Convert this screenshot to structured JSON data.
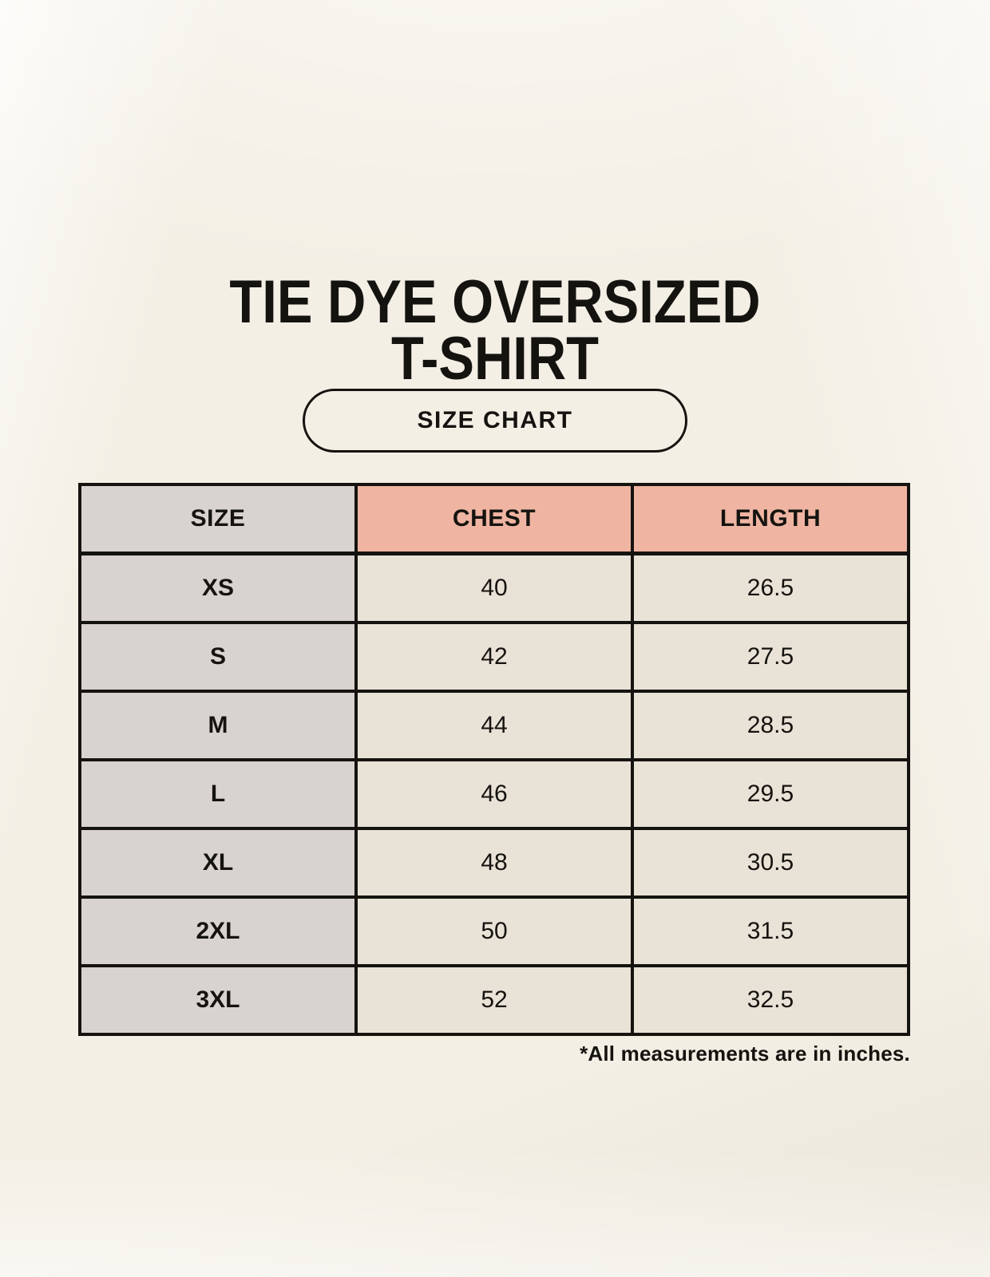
{
  "page": {
    "title_lines": [
      "TIE DYE OVERSIZED",
      "T-SHIRT"
    ],
    "badge_label": "SIZE CHART",
    "footnote": "*All measurements are in inches."
  },
  "colors": {
    "background": "#f3efe5",
    "header_label_bg": "#d9d3d0",
    "header_accent_bg": "#efb5a2",
    "cell_label_bg": "#d9d3d0",
    "cell_value_bg": "#e9e2d7",
    "border": "#15130f",
    "text": "#15130f"
  },
  "table": {
    "columns": [
      "SIZE",
      "CHEST",
      "LENGTH"
    ],
    "rows": [
      {
        "size": "XS",
        "chest": "40",
        "length": "26.5"
      },
      {
        "size": "S",
        "chest": "42",
        "length": "27.5"
      },
      {
        "size": "M",
        "chest": "44",
        "length": "28.5"
      },
      {
        "size": "L",
        "chest": "46",
        "length": "29.5"
      },
      {
        "size": "XL",
        "chest": "48",
        "length": "30.5"
      },
      {
        "size": "2XL",
        "chest": "50",
        "length": "31.5"
      },
      {
        "size": "3XL",
        "chest": "52",
        "length": "32.5"
      }
    ]
  },
  "chart_data": {
    "type": "table",
    "title": "TIE DYE OVERSIZED T-SHIRT — SIZE CHART",
    "columns": [
      "SIZE",
      "CHEST",
      "LENGTH"
    ],
    "rows": [
      [
        "XS",
        40,
        26.5
      ],
      [
        "S",
        42,
        27.5
      ],
      [
        "M",
        44,
        28.5
      ],
      [
        "L",
        46,
        29.5
      ],
      [
        "XL",
        48,
        30.5
      ],
      [
        "2XL",
        50,
        31.5
      ],
      [
        "3XL",
        52,
        32.5
      ]
    ],
    "note": "*All measurements are in inches."
  }
}
